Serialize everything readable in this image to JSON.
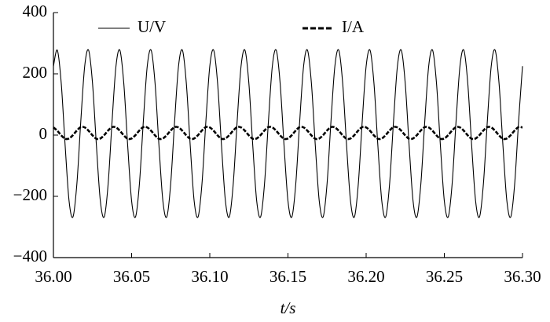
{
  "chart_data": {
    "type": "line",
    "xlabel": "t/s",
    "x": [
      36,
      36.0025,
      36.005,
      36.0075,
      36.01,
      36.0125,
      36.015,
      36.0175,
      36.02,
      36.0225,
      36.025,
      36.0275,
      36.03,
      36.0325,
      36.035,
      36.0375,
      36.04,
      36.0425,
      36.045,
      36.0475,
      36.05,
      36.0525,
      36.055,
      36.0575,
      36.06,
      36.0625,
      36.065,
      36.0675,
      36.07,
      36.0725,
      36.075,
      36.0775,
      36.08,
      36.0825,
      36.085,
      36.0875,
      36.09,
      36.0925,
      36.095,
      36.0975,
      36.1,
      36.1025,
      36.105,
      36.1075,
      36.11,
      36.1125,
      36.115,
      36.1175,
      36.12,
      36.1225,
      36.125,
      36.1275,
      36.13,
      36.1325,
      36.135,
      36.1375,
      36.14,
      36.1425,
      36.145,
      36.1475,
      36.15,
      36.1525,
      36.155,
      36.1575,
      36.16,
      36.1625,
      36.165,
      36.1675,
      36.17,
      36.1725,
      36.175,
      36.1775,
      36.18,
      36.1825,
      36.185,
      36.1875,
      36.19,
      36.1925,
      36.195,
      36.1975,
      36.2,
      36.2025,
      36.205,
      36.2075,
      36.21,
      36.2125,
      36.215,
      36.2175,
      36.22,
      36.2225,
      36.225,
      36.2275,
      36.23,
      36.2325,
      36.235,
      36.2375,
      36.24,
      36.2425,
      36.245,
      36.2475,
      36.25,
      36.2525,
      36.255,
      36.2575,
      36.26,
      36.2625,
      36.265,
      36.2675,
      36.27,
      36.2725,
      36.275,
      36.2775,
      36.28,
      36.2825,
      36.285,
      36.2875,
      36.29,
      36.2925,
      36.295,
      36.2975,
      36.3
    ],
    "series": [
      {
        "name": "U/V",
        "color": "#000000",
        "style": "solid",
        "values": [
          225,
          277,
          169,
          -35,
          -215,
          -267,
          -159,
          45,
          225,
          277,
          169,
          -35,
          -215,
          -267,
          -159,
          45,
          225,
          277,
          169,
          -35,
          -215,
          -267,
          -159,
          45,
          225,
          277,
          169,
          -35,
          -215,
          -267,
          -159,
          45,
          225,
          277,
          169,
          -35,
          -215,
          -267,
          -159,
          45,
          225,
          277,
          169,
          -35,
          -215,
          -267,
          -159,
          45,
          225,
          277,
          169,
          -35,
          -215,
          -267,
          -159,
          45,
          225,
          277,
          169,
          -35,
          -215,
          -267,
          -159,
          45,
          225,
          277,
          169,
          -35,
          -215,
          -267,
          -159,
          45,
          225,
          277,
          169,
          -35,
          -215,
          -267,
          -159,
          45,
          225,
          277,
          169,
          -35,
          -215,
          -267,
          -159,
          45,
          225,
          277,
          169,
          -35,
          -215,
          -267,
          -159,
          45,
          225,
          277,
          169,
          -35,
          -215,
          -267,
          -159,
          45,
          225,
          277,
          169,
          -35,
          -215,
          -267,
          -159,
          45,
          225,
          277,
          169,
          -35,
          -215,
          -267,
          -159,
          45,
          225
        ]
      },
      {
        "name": "I/A",
        "color": "#000000",
        "style": "dashed",
        "values": [
          25,
          14,
          -1,
          -12,
          -11,
          0,
          15,
          26,
          25,
          14,
          -1,
          -12,
          -11,
          0,
          15,
          26,
          25,
          14,
          -1,
          -12,
          -11,
          0,
          15,
          26,
          25,
          14,
          -1,
          -12,
          -11,
          0,
          15,
          26,
          25,
          14,
          -1,
          -12,
          -11,
          0,
          15,
          26,
          25,
          14,
          -1,
          -12,
          -11,
          0,
          15,
          26,
          25,
          14,
          -1,
          -12,
          -11,
          0,
          15,
          26,
          25,
          14,
          -1,
          -12,
          -11,
          0,
          15,
          26,
          25,
          14,
          -1,
          -12,
          -11,
          0,
          15,
          26,
          25,
          14,
          -1,
          -12,
          -11,
          0,
          15,
          26,
          25,
          14,
          -1,
          -12,
          -11,
          0,
          15,
          26,
          25,
          14,
          -1,
          -12,
          -11,
          0,
          15,
          26,
          25,
          14,
          -1,
          -12,
          -11,
          0,
          15,
          26,
          25,
          14,
          -1,
          -12,
          -11,
          0,
          15,
          26,
          25,
          14,
          -1,
          -12,
          -11,
          0,
          15,
          26,
          25
        ]
      }
    ],
    "xlim": [
      36,
      36.3
    ],
    "xticks": [
      {
        "value": 36,
        "label": "36.00"
      },
      {
        "value": 36.05,
        "label": "36.05"
      },
      {
        "value": 36.1,
        "label": "36.10"
      },
      {
        "value": 36.15,
        "label": "36.15"
      },
      {
        "value": 36.2,
        "label": "36.20"
      },
      {
        "value": 36.25,
        "label": "36.25"
      },
      {
        "value": 36.3,
        "label": "36.30"
      }
    ],
    "ylim": [
      -400,
      400
    ],
    "yticks": [
      {
        "value": -400,
        "label": "−400"
      },
      {
        "value": -200,
        "label": "−200"
      },
      0,
      200,
      400
    ],
    "legend": "upper center"
  }
}
